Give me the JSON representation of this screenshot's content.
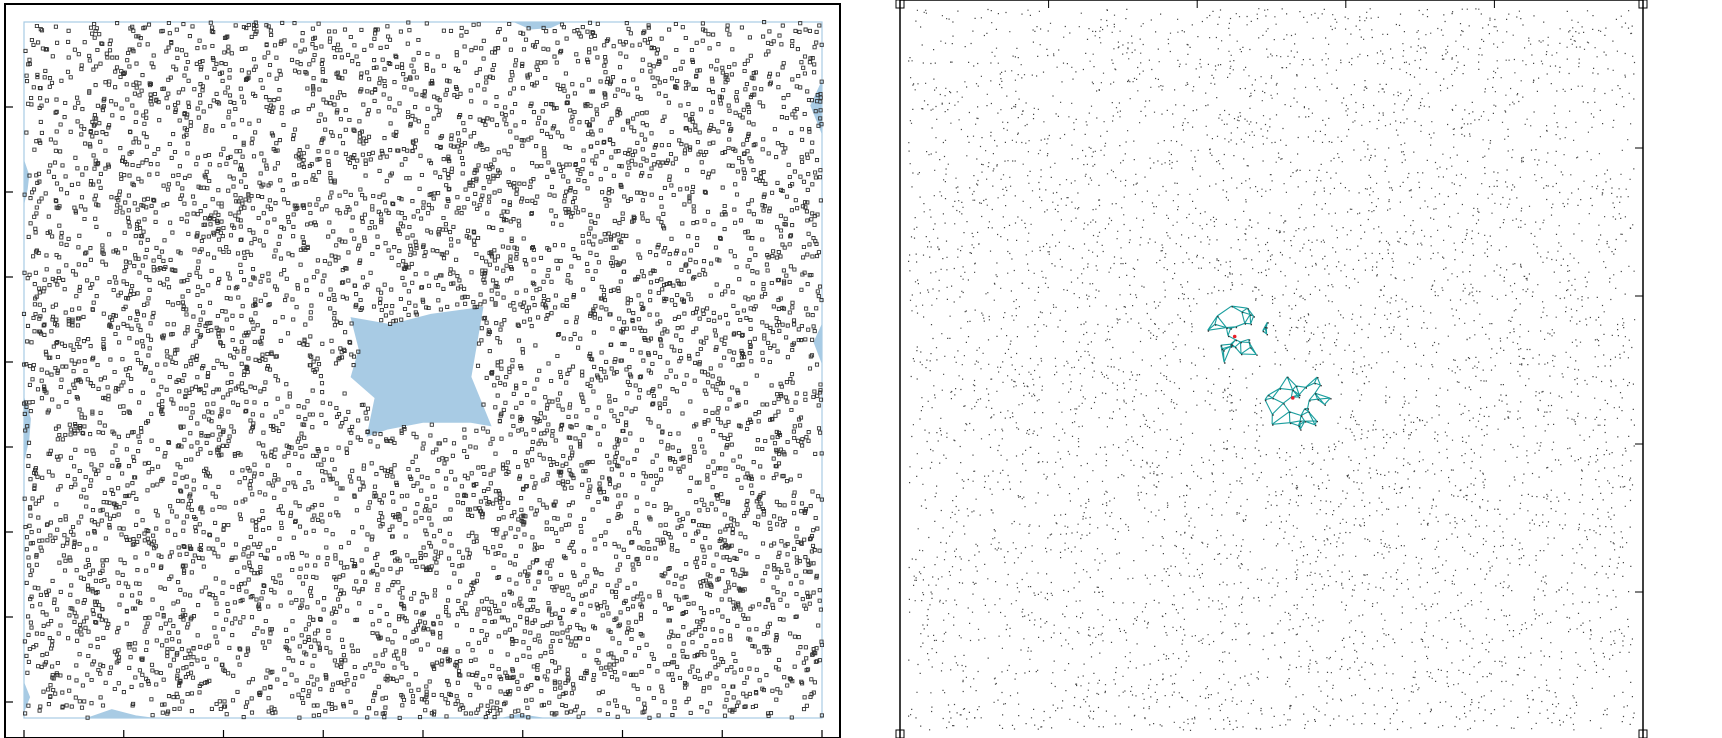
{
  "chart_data": [
    {
      "type": "scatter",
      "title": "",
      "xlabel": "",
      "ylabel": "",
      "grid": false,
      "marker": "hollow-square",
      "point_color": "#333333",
      "void_region_color": "#a8cbe4",
      "xlim": [
        0,
        1
      ],
      "ylim": [
        0,
        1
      ],
      "point_count_estimate": 6500,
      "description_note_hidden": "",
      "void_regions": [
        {
          "name": "central-void",
          "polygon": [
            [
              0.41,
              0.575
            ],
            [
              0.46,
              0.565
            ],
            [
              0.51,
              0.58
            ],
            [
              0.575,
              0.59
            ],
            [
              0.56,
              0.49
            ],
            [
              0.585,
              0.42
            ],
            [
              0.56,
              0.425
            ],
            [
              0.5,
              0.425
            ],
            [
              0.455,
              0.415
            ],
            [
              0.43,
              0.405
            ],
            [
              0.44,
              0.46
            ],
            [
              0.41,
              0.49
            ],
            [
              0.42,
              0.53
            ]
          ]
        },
        {
          "name": "edge-void-top",
          "polygon": [
            [
              0.615,
              1.0
            ],
            [
              0.635,
              0.99
            ],
            [
              0.66,
              0.992
            ],
            [
              0.675,
              1.0
            ]
          ]
        },
        {
          "name": "edge-void-bottom-left",
          "polygon": [
            [
              0.08,
              0.0
            ],
            [
              0.11,
              0.012
            ],
            [
              0.14,
              0.003
            ],
            [
              0.16,
              0.0
            ]
          ]
        },
        {
          "name": "edge-void-bottom-right",
          "polygon": [
            [
              0.6,
              0.0
            ],
            [
              0.62,
              0.005
            ],
            [
              0.65,
              0.0
            ]
          ]
        },
        {
          "name": "edge-void-left-top",
          "polygon": [
            [
              0.0,
              0.8
            ],
            [
              0.006,
              0.78
            ],
            [
              0.004,
              0.76
            ],
            [
              0.0,
              0.74
            ]
          ]
        },
        {
          "name": "edge-void-left-mid",
          "polygon": [
            [
              0.0,
              0.46
            ],
            [
              0.008,
              0.43
            ],
            [
              0.006,
              0.4
            ],
            [
              0.0,
              0.37
            ]
          ]
        },
        {
          "name": "edge-void-left-bottom",
          "polygon": [
            [
              0.0,
              0.05
            ],
            [
              0.007,
              0.03
            ],
            [
              0.0,
              0.01
            ]
          ]
        },
        {
          "name": "edge-void-right-top",
          "polygon": [
            [
              1.0,
              0.915
            ],
            [
              0.986,
              0.88
            ],
            [
              1.0,
              0.84
            ]
          ]
        },
        {
          "name": "edge-void-right-mid",
          "polygon": [
            [
              1.0,
              0.565
            ],
            [
              0.99,
              0.54
            ],
            [
              1.0,
              0.51
            ]
          ]
        }
      ],
      "x_ticks": [
        "",
        "",
        "",
        "",
        "",
        "",
        "",
        "",
        ""
      ],
      "y_ticks": [
        "",
        "",
        "",
        "",
        "",
        "",
        "",
        ""
      ]
    },
    {
      "type": "scatter",
      "title": "",
      "xlabel": "",
      "ylabel": "",
      "grid": false,
      "marker": "dot",
      "point_color": "#444444",
      "mesh_color": "#1a9e9e",
      "center_color": "#e8202a",
      "xlim": [
        0,
        1
      ],
      "ylim": [
        0,
        1
      ],
      "point_count_estimate": 5500,
      "clusters": [
        {
          "name": "cluster-upper",
          "center": [
            0.45,
            0.545
          ],
          "extent": [
            0.41,
            0.505,
            0.5,
            0.59
          ]
        },
        {
          "name": "cluster-lower",
          "center": [
            0.53,
            0.46
          ],
          "extent": [
            0.49,
            0.4,
            0.59,
            0.5
          ]
        }
      ],
      "x_ticks": [
        "",
        "",
        "",
        ""
      ],
      "y_ticks": [
        "",
        "",
        "",
        ""
      ]
    }
  ]
}
